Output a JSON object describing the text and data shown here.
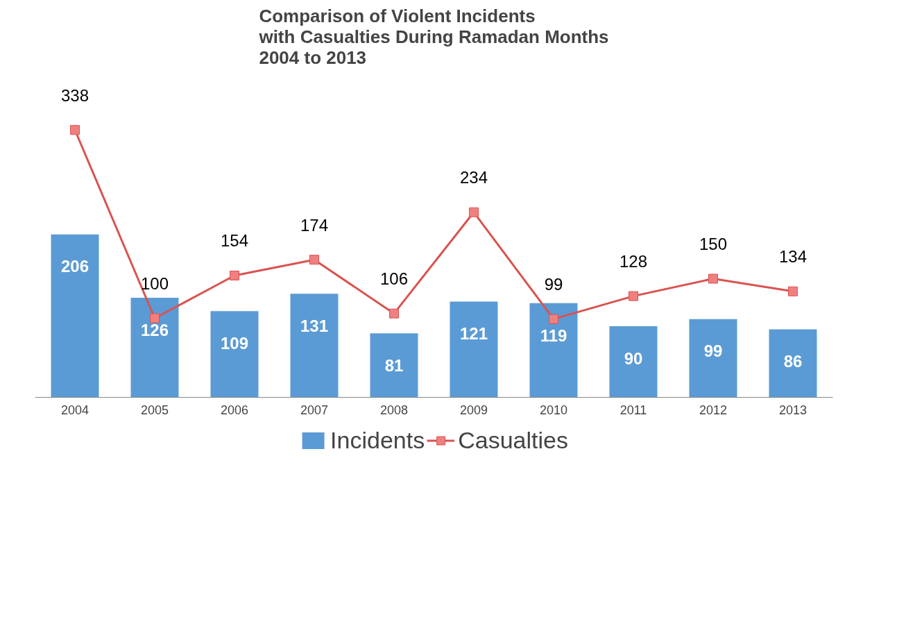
{
  "chart_data": {
    "type": "bar",
    "title": "Comparison of Violent Incidents\nwith Casualties During Ramadan Months\n2004 to 2013",
    "categories": [
      "2004",
      "2005",
      "2006",
      "2007",
      "2008",
      "2009",
      "2010",
      "2011",
      "2012",
      "2013"
    ],
    "series": [
      {
        "name": "Incidents",
        "color": "#5b9bd5",
        "values": [
          206,
          126,
          109,
          131,
          81,
          121,
          119,
          90,
          99,
          86
        ]
      },
      {
        "name": "Casualties",
        "type": "line",
        "color": "#d9534f",
        "marker": "square",
        "values": [
          338,
          100,
          154,
          174,
          106,
          234,
          99,
          128,
          150,
          134
        ]
      }
    ],
    "data_labels": true,
    "grid": false,
    "legend": "bottom"
  }
}
